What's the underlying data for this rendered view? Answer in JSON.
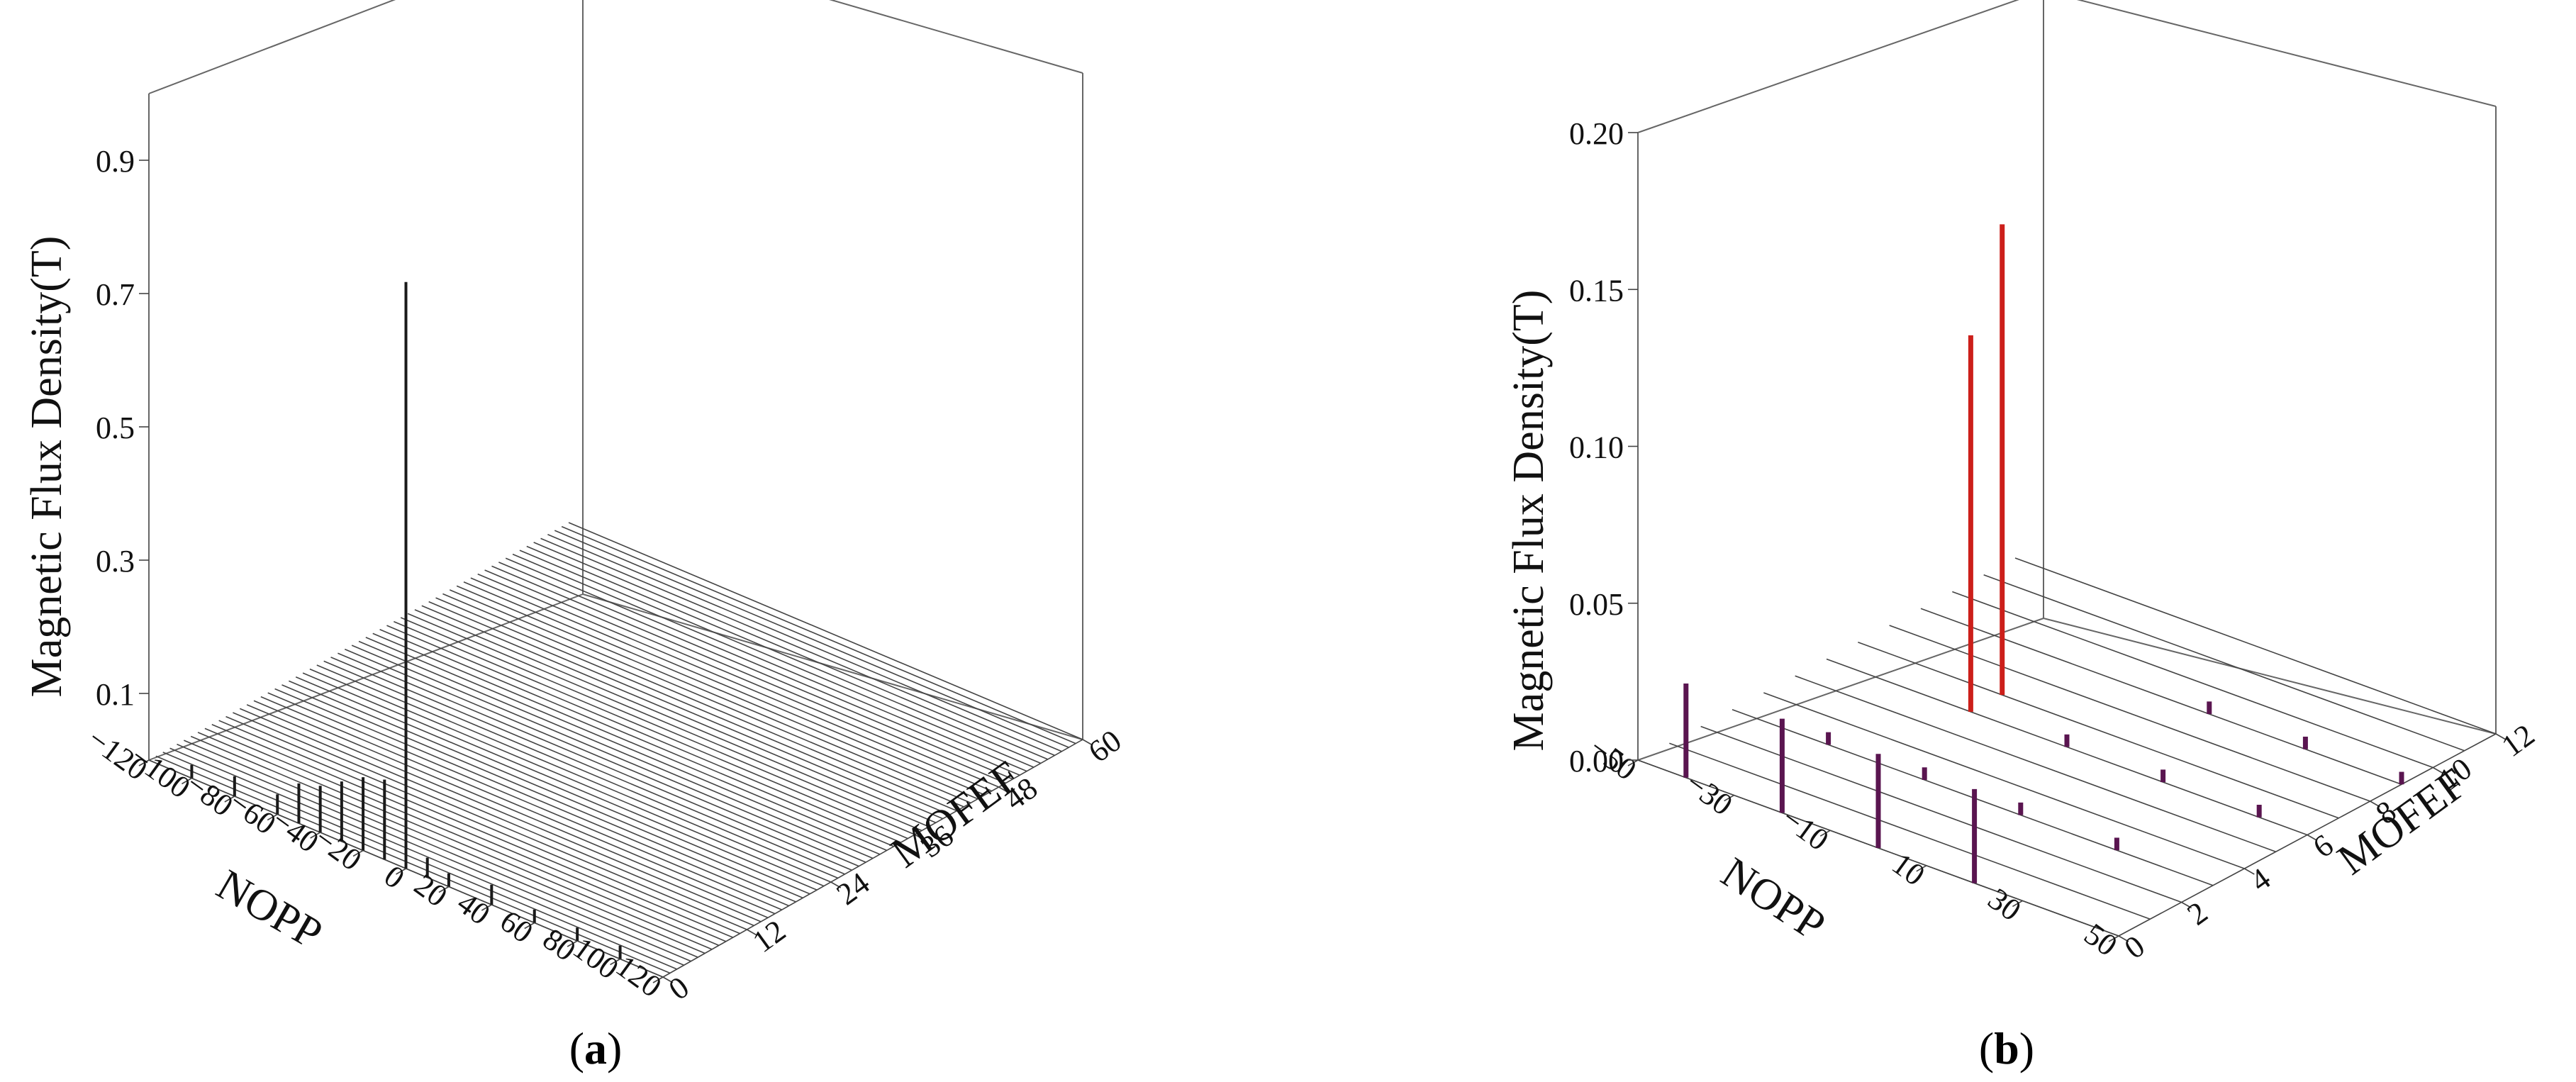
{
  "chart_data": [
    {
      "type": "bar3d",
      "panel_label": "a",
      "zlabel": "Magnetic Flux Density(T)",
      "xlabel": "NOPP",
      "ylabel": "MOFEF",
      "x_ticks": [
        "−120",
        "−100",
        "−80",
        "−60",
        "−40",
        "−20",
        "0",
        "20",
        "40",
        "60",
        "80",
        "100",
        "120"
      ],
      "y_ticks": [
        "0",
        "12",
        "24",
        "36",
        "48",
        "60"
      ],
      "z_ticks": [
        "0.1",
        "0.3",
        "0.5",
        "0.7",
        "0.9"
      ],
      "xlim": [
        -120,
        120
      ],
      "ylim": [
        0,
        60
      ],
      "zlim": [
        0,
        1.0
      ],
      "series_lines_count": 61,
      "points": [
        {
          "x": -100,
          "y": 0,
          "z": 0.02
        },
        {
          "x": -80,
          "y": 0,
          "z": 0.03
        },
        {
          "x": -60,
          "y": 0,
          "z": 0.03
        },
        {
          "x": -50,
          "y": 0,
          "z": 0.06
        },
        {
          "x": -40,
          "y": 0,
          "z": 0.07
        },
        {
          "x": -30,
          "y": 0,
          "z": 0.09
        },
        {
          "x": -20,
          "y": 0,
          "z": 0.11
        },
        {
          "x": -10,
          "y": 0,
          "z": 0.12
        },
        {
          "x": 0,
          "y": 0,
          "z": 0.88
        },
        {
          "x": 10,
          "y": 0,
          "z": 0.03
        },
        {
          "x": 20,
          "y": 0,
          "z": 0.02
        },
        {
          "x": 40,
          "y": 0,
          "z": 0.03
        },
        {
          "x": 60,
          "y": 0,
          "z": 0.02
        },
        {
          "x": 80,
          "y": 0,
          "z": 0.02
        },
        {
          "x": 100,
          "y": 0,
          "z": 0.02
        }
      ]
    },
    {
      "type": "bar3d",
      "panel_label": "b",
      "zlabel": "Magnetic Flux Density(T)",
      "xlabel": "NOPP",
      "ylabel": "MOFEF",
      "x_ticks": [
        "−50",
        "−30",
        "−10",
        "10",
        "30",
        "50"
      ],
      "y_ticks": [
        "0",
        "2",
        "4",
        "6",
        "8",
        "10",
        "12"
      ],
      "z_ticks": [
        "0.00",
        "0.05",
        "0.10",
        "0.15",
        "0.20"
      ],
      "xlim": [
        -50,
        50
      ],
      "ylim": [
        0,
        12
      ],
      "zlim": [
        0,
        0.2
      ],
      "series_lines_count": 13,
      "colors": {
        "high": "#cc1f1a",
        "low": "#5a1550"
      },
      "points": [
        {
          "x": -40,
          "y": 0,
          "z": 0.03
        },
        {
          "x": -20,
          "y": 0,
          "z": 0.03
        },
        {
          "x": 0,
          "y": 0,
          "z": 0.03
        },
        {
          "x": 20,
          "y": 0,
          "z": 0.03
        },
        {
          "x": -20,
          "y": 6,
          "z": 0.12
        },
        {
          "x": -20,
          "y": 7,
          "z": 0.15
        },
        {
          "x": -30,
          "y": 3,
          "z": 0.004
        },
        {
          "x": -10,
          "y": 3,
          "z": 0.004
        },
        {
          "x": 10,
          "y": 3,
          "z": 0.004
        },
        {
          "x": 30,
          "y": 3,
          "z": 0.004
        },
        {
          "x": 0,
          "y": 6,
          "z": 0.004
        },
        {
          "x": 20,
          "y": 6,
          "z": 0.004
        },
        {
          "x": 40,
          "y": 6,
          "z": 0.004
        },
        {
          "x": 10,
          "y": 9,
          "z": 0.004
        },
        {
          "x": 30,
          "y": 9,
          "z": 0.004
        },
        {
          "x": 50,
          "y": 9,
          "z": 0.004
        }
      ]
    }
  ]
}
